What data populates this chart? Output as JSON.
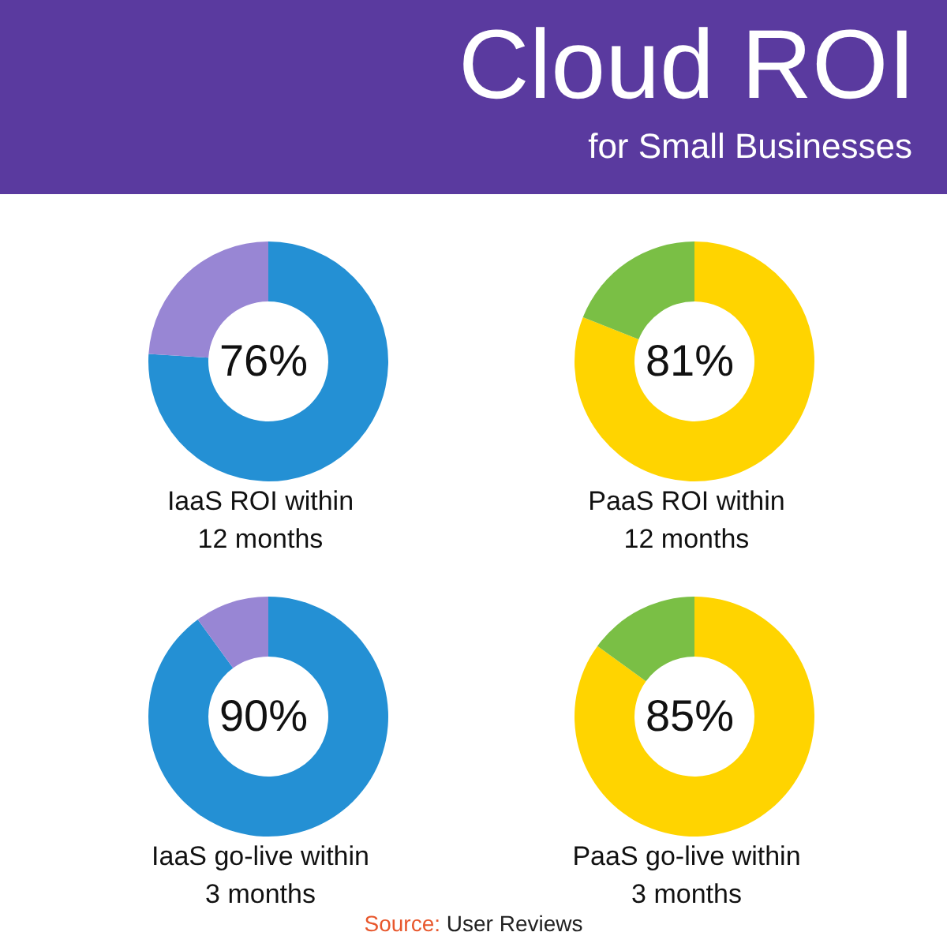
{
  "chart_data": [
    {
      "type": "other",
      "title": "Cloud ROI",
      "subtitle": "for Small Businesses"
    },
    {
      "type": "donut",
      "xlabel": "IaaS ROI within 12 months",
      "categories": [
        null,
        null
      ],
      "values": [
        76,
        24
      ],
      "colors": [
        "#2490d4",
        "#9886d4"
      ],
      "value_labels": [
        "76%",
        null
      ]
    },
    {
      "type": "donut",
      "xlabel": "PaaS ROI within 12 months",
      "categories": [
        null,
        null
      ],
      "values": [
        81,
        19
      ],
      "colors": [
        "#ffd400",
        "#7abf45"
      ],
      "value_labels": [
        "81%",
        null
      ]
    },
    {
      "type": "donut",
      "xlabel": "IaaS go-live within 3 months",
      "categories": [
        null,
        null
      ],
      "values": [
        90,
        10
      ],
      "colors": [
        "#2490d4",
        "#9886d4"
      ],
      "value_labels": [
        "90%",
        null
      ]
    },
    {
      "type": "donut",
      "xlabel": "PaaS go-live within 3 months",
      "categories": [
        null,
        null
      ],
      "values": [
        85,
        15
      ],
      "colors": [
        "#ffd400",
        "#7abf45"
      ],
      "value_labels": [
        "85%",
        null
      ],
      "annotations": [
        "Source: User Reviews"
      ]
    }
  ]
}
